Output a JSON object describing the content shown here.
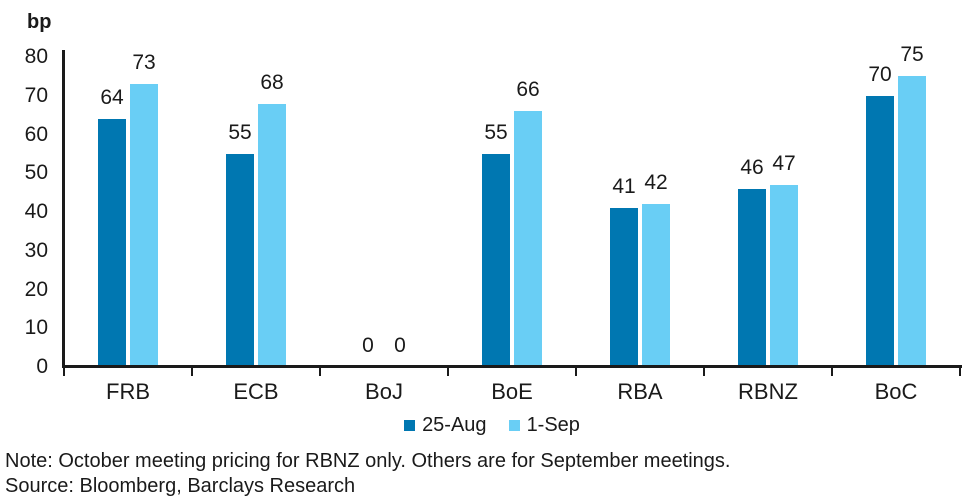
{
  "chart_data": {
    "type": "bar",
    "title": "",
    "unit_label": "bp",
    "categories": [
      "FRB",
      "ECB",
      "BoJ",
      "BoE",
      "RBA",
      "RBNZ",
      "BoC"
    ],
    "series": [
      {
        "name": "25-Aug",
        "color": "#0077B1",
        "values": [
          64,
          55,
          0,
          55,
          41,
          46,
          70
        ]
      },
      {
        "name": "1-Sep",
        "color": "#69CEF5",
        "values": [
          73,
          68,
          0,
          66,
          42,
          47,
          75
        ]
      }
    ],
    "xlabel": "",
    "ylabel": "bp",
    "ylim": [
      0,
      80
    ],
    "ytick_step": 10,
    "grid": false,
    "legend_position": "bottom",
    "value_labels": true
  },
  "colors": {
    "text": "#1a1a1a",
    "axis": "#1a1a1a",
    "background": "#ffffff"
  },
  "footer": {
    "note": "Note: October meeting pricing for RBNZ only. Others are for September meetings.",
    "source": "Source: Bloomberg, Barclays Research"
  }
}
